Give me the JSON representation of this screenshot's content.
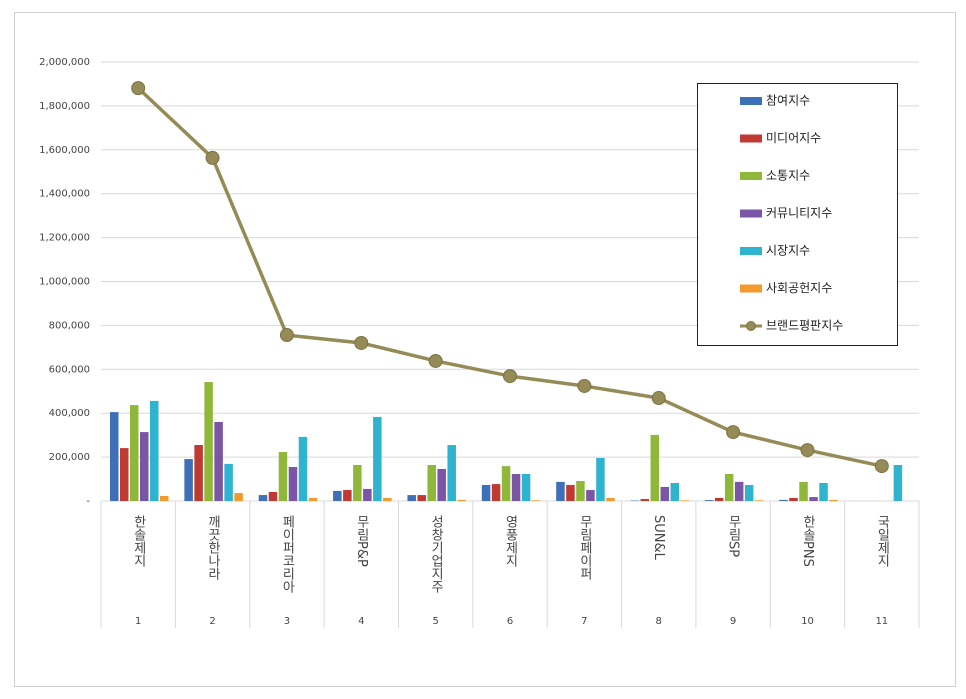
{
  "chart_data": {
    "type": "bar_line",
    "categories": [
      "한솔제지",
      "깨끗한나라",
      "페이퍼코리아",
      "무림P&P",
      "성창기업지주",
      "영풍제지",
      "무림페이퍼",
      "SUN&L",
      "무림SP",
      "한솔PNS",
      "국일제지"
    ],
    "category_ranks": [
      "1",
      "2",
      "3",
      "4",
      "5",
      "6",
      "7",
      "8",
      "9",
      "10",
      "11"
    ],
    "series": [
      {
        "name": "참여지수",
        "color": "#3e70b8",
        "values": [
          405000,
          191000,
          27000,
          46000,
          27000,
          73000,
          87000,
          2000,
          4000,
          5000,
          0
        ]
      },
      {
        "name": "미디어지수",
        "color": "#c03a34",
        "values": [
          241000,
          255000,
          41000,
          50000,
          27000,
          77000,
          73000,
          9000,
          14000,
          14000,
          0
        ]
      },
      {
        "name": "소통지수",
        "color": "#8fb83b",
        "values": [
          437000,
          542000,
          223000,
          164000,
          164000,
          159000,
          91000,
          301000,
          123000,
          87000,
          0
        ]
      },
      {
        "name": "커뮤니티지수",
        "color": "#7b55a6",
        "values": [
          314000,
          360000,
          155000,
          55000,
          146000,
          123000,
          50000,
          64000,
          87000,
          18000,
          0
        ]
      },
      {
        "name": "시장지수",
        "color": "#2fb4cf",
        "values": [
          456000,
          169000,
          292000,
          383000,
          255000,
          123000,
          196000,
          82000,
          73000,
          82000,
          164000
        ]
      },
      {
        "name": "사회공헌지수",
        "color": "#f29a2c",
        "values": [
          23000,
          36000,
          14000,
          14000,
          5000,
          3000,
          14000,
          3000,
          3000,
          5000,
          0
        ]
      }
    ],
    "line_series": {
      "name": "브랜드평판지수",
      "color": "#958b56",
      "values": [
        1881000,
        1563000,
        756000,
        720000,
        638000,
        569000,
        524000,
        469000,
        314000,
        232000,
        159000
      ]
    },
    "ylim": [
      0,
      2000000
    ],
    "yticks": [
      {
        "value": 0,
        "label": "-"
      },
      {
        "value": 200000,
        "label": "200,000"
      },
      {
        "value": 400000,
        "label": "400,000"
      },
      {
        "value": 600000,
        "label": "600,000"
      },
      {
        "value": 800000,
        "label": "800,000"
      },
      {
        "value": 1000000,
        "label": "1,000,000"
      },
      {
        "value": 1200000,
        "label": "1,200,000"
      },
      {
        "value": 1400000,
        "label": "1,400,000"
      },
      {
        "value": 1600000,
        "label": "1,600,000"
      },
      {
        "value": 1800000,
        "label": "1,800,000"
      },
      {
        "value": 2000000,
        "label": "2,000,000"
      }
    ],
    "grid": true
  }
}
